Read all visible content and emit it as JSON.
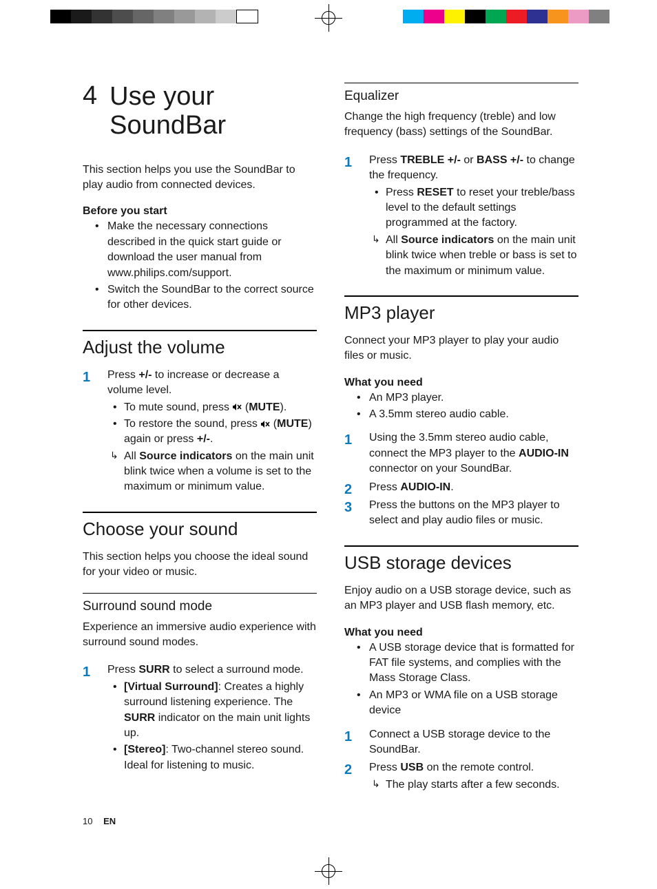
{
  "print_marks": {
    "gray_bar_colors": [
      "#000000",
      "#1a1a1a",
      "#333333",
      "#4d4d4d",
      "#666666",
      "#808080",
      "#999999",
      "#b3b3b3",
      "#cccccc",
      "#ffffff"
    ],
    "color_bar_colors": [
      "#ffffff",
      "#00aeef",
      "#ec008c",
      "#fff200",
      "#000000",
      "#00a651",
      "#ed1c24",
      "#2e3192",
      "#f7941d",
      "#ec9bc4",
      "#808080",
      "#ffffff"
    ]
  },
  "chapter": {
    "number": "4",
    "title": "Use your SoundBar"
  },
  "intro": "This section helps you use the SoundBar to play audio from connected devices.",
  "before": {
    "heading": "Before you start",
    "items": [
      "Make the necessary connections described in the quick start guide or download the user manual from www.philips.com/support.",
      "Switch the SoundBar to the correct source for other devices."
    ]
  },
  "volume": {
    "heading": "Adjust the volume",
    "step1_pre": "Press ",
    "step1_key": "+/-",
    "step1_post": " to increase or decrease a volume level.",
    "sub_mute_pre": "To mute sound, press ",
    "sub_mute_label": "MUTE",
    "sub_mute_post": ").",
    "sub_restore_pre": "To restore the sound, press ",
    "sub_restore_mid": ") again or press ",
    "sub_restore_key": "+/-",
    "sub_restore_post": ".",
    "result_pre": "All ",
    "result_bold": "Source indicators",
    "result_post": " on the main unit blink twice when a volume is set to the maximum or minimum value."
  },
  "sound": {
    "heading": "Choose your sound",
    "intro": "This section helps you choose the ideal sound for your video or music."
  },
  "surround": {
    "heading": "Surround sound mode",
    "intro": "Experience an immersive audio experience with surround sound modes.",
    "step1_pre": "Press ",
    "step1_key": "SURR",
    "step1_post": " to select a surround mode.",
    "opt1_label": "[Virtual Surround]",
    "opt1_text_a": ": Creates a highly surround listening experience. The ",
    "opt1_key": "SURR",
    "opt1_text_b": " indicator on the main unit lights up.",
    "opt2_label": "[Stereo]",
    "opt2_text": ": Two-channel stereo sound. Ideal for listening to music."
  },
  "eq": {
    "heading": "Equalizer",
    "intro": "Change the high frequency (treble) and low frequency (bass) settings of the SoundBar.",
    "step1_pre": "Press ",
    "step1_k1": "TREBLE +/-",
    "step1_mid": " or ",
    "step1_k2": "BASS +/-",
    "step1_post": " to change the frequency.",
    "sub1_pre": "Press ",
    "sub1_key": "RESET",
    "sub1_post": " to reset your treble/bass level to the default settings programmed at the factory.",
    "result_pre": "All ",
    "result_bold": "Source indicators",
    "result_post": " on the main unit blink twice when treble or bass is set to the maximum or minimum value."
  },
  "mp3": {
    "heading": "MP3 player",
    "intro": "Connect your MP3 player to play your audio files or music.",
    "need_heading": "What you need",
    "needs": [
      "An MP3 player.",
      "A 3.5mm stereo audio cable."
    ],
    "step1_a": "Using the 3.5mm stereo audio cable, connect the MP3 player to the ",
    "step1_key": "AUDIO-IN",
    "step1_b": " connector on your SoundBar.",
    "step2_pre": "Press ",
    "step2_key": "AUDIO-IN",
    "step2_post": ".",
    "step3": "Press the buttons on the MP3 player to select and play audio files or music."
  },
  "usb": {
    "heading": "USB storage devices",
    "intro": "Enjoy audio on a USB storage device, such as an MP3 player and USB flash memory, etc.",
    "need_heading": "What you need",
    "needs": [
      "A USB storage device that is formatted for FAT file systems, and complies with the Mass Storage Class.",
      "An MP3 or WMA file on a USB storage device"
    ],
    "step1": "Connect a USB storage device to the SoundBar.",
    "step2_pre": "Press ",
    "step2_key": "USB",
    "step2_post": " on the remote control.",
    "result": "The play starts after a few seconds."
  },
  "footer": {
    "page": "10",
    "lang": "EN"
  }
}
